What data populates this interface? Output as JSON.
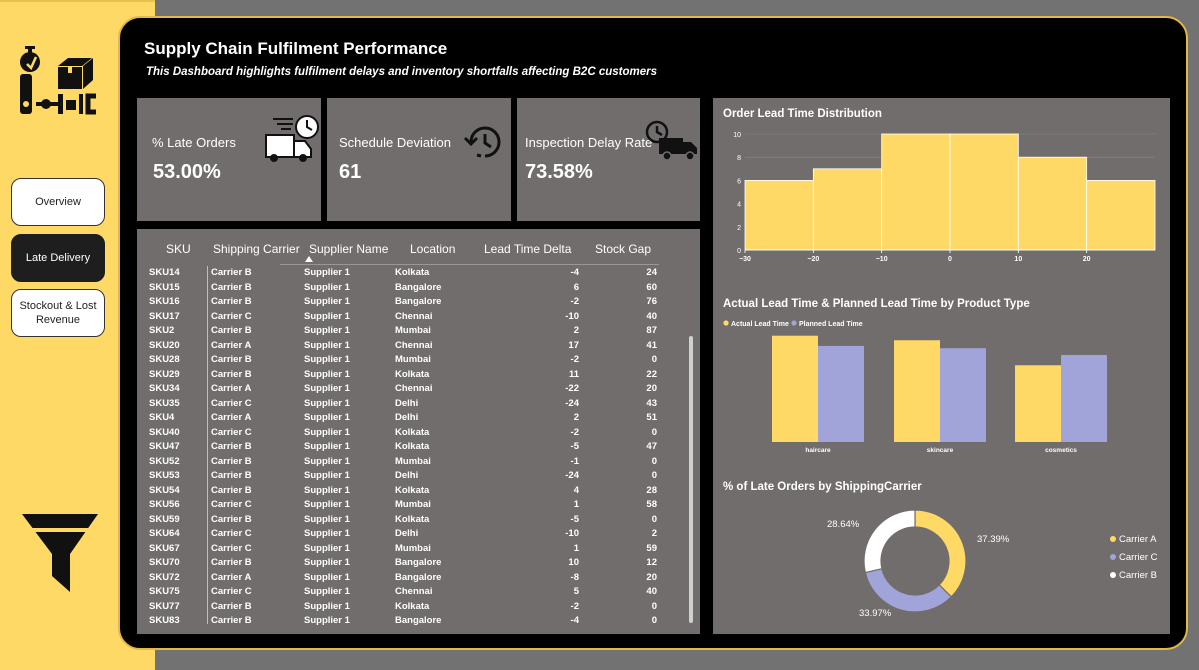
{
  "header": {
    "title": "Supply Chain Fulfilment Performance",
    "subtitle": "This Dashboard highlights fulfilment delays and inventory shortfalls affecting B2C customers"
  },
  "nav": {
    "items": [
      {
        "label": "Overview",
        "active": false
      },
      {
        "label": "Late Delivery",
        "active": true
      },
      {
        "label": "Stockout & Lost Revenue",
        "active": false
      }
    ]
  },
  "kpis": [
    {
      "label": "% Late Orders",
      "value": "53.00%",
      "icon": "delivery-truck-clock-icon"
    },
    {
      "label": "Schedule Deviation",
      "value": "61",
      "icon": "clock-rewind-icon"
    },
    {
      "label": "Inspection Delay Rate",
      "value": "73.58%",
      "icon": "truck-clock-icon"
    }
  ],
  "table": {
    "columns": [
      "SKU",
      "Shipping Carrier",
      "Supplier Name",
      "Location",
      "Lead Time Delta",
      "Stock Gap"
    ],
    "sort_column": "Supplier Name",
    "rows": [
      [
        "SKU14",
        "Carrier B",
        "Supplier 1",
        "Kolkata",
        "-4",
        "24"
      ],
      [
        "SKU15",
        "Carrier B",
        "Supplier 1",
        "Bangalore",
        "6",
        "60"
      ],
      [
        "SKU16",
        "Carrier B",
        "Supplier 1",
        "Bangalore",
        "-2",
        "76"
      ],
      [
        "SKU17",
        "Carrier C",
        "Supplier 1",
        "Chennai",
        "-10",
        "40"
      ],
      [
        "SKU2",
        "Carrier B",
        "Supplier 1",
        "Mumbai",
        "2",
        "87"
      ],
      [
        "SKU20",
        "Carrier A",
        "Supplier 1",
        "Chennai",
        "17",
        "41"
      ],
      [
        "SKU28",
        "Carrier B",
        "Supplier 1",
        "Mumbai",
        "-2",
        "0"
      ],
      [
        "SKU29",
        "Carrier B",
        "Supplier 1",
        "Kolkata",
        "11",
        "22"
      ],
      [
        "SKU34",
        "Carrier A",
        "Supplier 1",
        "Chennai",
        "-22",
        "20"
      ],
      [
        "SKU35",
        "Carrier C",
        "Supplier 1",
        "Delhi",
        "-24",
        "43"
      ],
      [
        "SKU4",
        "Carrier A",
        "Supplier 1",
        "Delhi",
        "2",
        "51"
      ],
      [
        "SKU40",
        "Carrier C",
        "Supplier 1",
        "Kolkata",
        "-2",
        "0"
      ],
      [
        "SKU47",
        "Carrier B",
        "Supplier 1",
        "Kolkata",
        "-5",
        "47"
      ],
      [
        "SKU52",
        "Carrier B",
        "Supplier 1",
        "Mumbai",
        "-1",
        "0"
      ],
      [
        "SKU53",
        "Carrier B",
        "Supplier 1",
        "Delhi",
        "-24",
        "0"
      ],
      [
        "SKU54",
        "Carrier B",
        "Supplier 1",
        "Kolkata",
        "4",
        "28"
      ],
      [
        "SKU56",
        "Carrier C",
        "Supplier 1",
        "Mumbai",
        "1",
        "58"
      ],
      [
        "SKU59",
        "Carrier B",
        "Supplier 1",
        "Kolkata",
        "-5",
        "0"
      ],
      [
        "SKU64",
        "Carrier C",
        "Supplier 1",
        "Delhi",
        "-10",
        "2"
      ],
      [
        "SKU67",
        "Carrier C",
        "Supplier 1",
        "Mumbai",
        "1",
        "59"
      ],
      [
        "SKU70",
        "Carrier B",
        "Supplier 1",
        "Bangalore",
        "10",
        "12"
      ],
      [
        "SKU72",
        "Carrier A",
        "Supplier 1",
        "Bangalore",
        "-8",
        "20"
      ],
      [
        "SKU75",
        "Carrier C",
        "Supplier 1",
        "Chennai",
        "5",
        "40"
      ],
      [
        "SKU77",
        "Carrier B",
        "Supplier 1",
        "Kolkata",
        "-2",
        "0"
      ],
      [
        "SKU83",
        "Carrier B",
        "Supplier 1",
        "Bangalore",
        "-4",
        "0"
      ]
    ]
  },
  "colors": {
    "yellow": "#ffd966",
    "lavender": "#a0a4d9",
    "white": "#ffffff",
    "panel": "#716d6d"
  },
  "chart_data": [
    {
      "type": "bar",
      "subtype": "histogram",
      "title": "Order Lead Time Distribution",
      "bin_edges": [
        -30,
        -20,
        -10,
        0,
        10,
        20,
        30
      ],
      "values": [
        6,
        7,
        10,
        10,
        8,
        6
      ],
      "xticks": [
        -30,
        -20,
        -10,
        0,
        10,
        20
      ],
      "xtick_labels": [
        "−30",
        "−20",
        "−10",
        "0",
        "10",
        "20"
      ],
      "yticks": [
        0,
        2,
        4,
        6,
        8,
        10
      ],
      "ylim": [
        0,
        10
      ],
      "xlim": [
        -30,
        30
      ]
    },
    {
      "type": "bar",
      "title": "Actual Lead Time & Planned Lead Time by Product Type",
      "categories": [
        "haircare",
        "skincare",
        "cosmetics"
      ],
      "series": [
        {
          "name": "Actual Lead Time",
          "values": [
            18.7,
            17.9,
            13.5
          ]
        },
        {
          "name": "Planned Lead Time",
          "values": [
            16.9,
            16.5,
            15.3
          ]
        }
      ],
      "ylim": [
        0,
        19
      ]
    },
    {
      "type": "pie",
      "subtype": "donut",
      "title": "% of Late Orders by ShippingCarrier",
      "labels": [
        "Carrier A",
        "Carrier C",
        "Carrier B"
      ],
      "values": [
        37.39,
        33.97,
        28.64
      ],
      "value_labels": [
        "37.39%",
        "33.97%",
        "28.64%"
      ],
      "legend_position": "right"
    }
  ]
}
